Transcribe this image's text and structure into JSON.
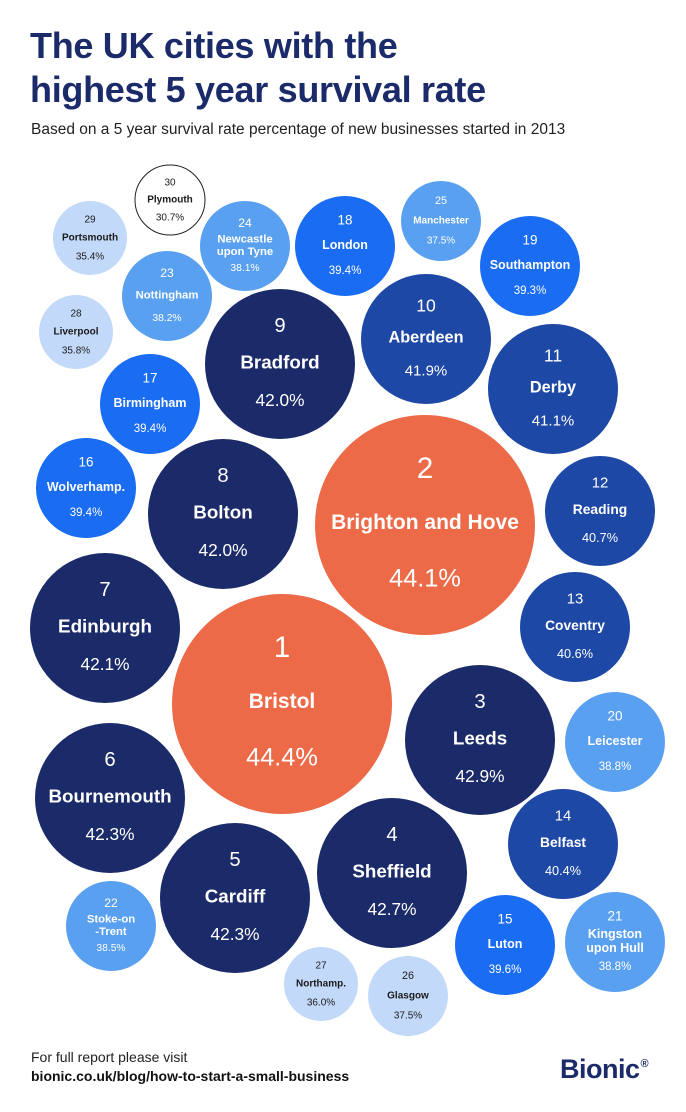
{
  "title_lines": [
    "The UK cities with the",
    "highest 5 year survival rate"
  ],
  "subtitle": "Based on a 5 year survival rate percentage of new businesses started in 2013",
  "footer": {
    "line1": "For full report please visit",
    "link": "bionic.co.uk/blog/how-to-start-a-small-business"
  },
  "logo": {
    "text": "Bionic",
    "mark": "®"
  },
  "colors": {
    "title": "#1b2a68",
    "rank_1_2": "#ec6a48",
    "rank_3_9": "#1b2a68",
    "rank_10_14": "#1e48a6",
    "rank_15_19": "#1a6cf2",
    "rank_20_25": "#5aa0f0",
    "rank_26_29": "#c3d9f9",
    "rank_30": "#ffffff"
  },
  "chart_data": {
    "type": "bubble",
    "title": "The UK cities with the highest 5 year survival rate",
    "subtitle": "Based on a 5 year survival rate percentage of new businesses started in 2013",
    "unit": "%",
    "cities": [
      {
        "rank": 1,
        "name": "Bristol",
        "rate": 44.4,
        "label": "44.4%"
      },
      {
        "rank": 2,
        "name": "Brighton and Hove",
        "rate": 44.1,
        "label": "44.1%"
      },
      {
        "rank": 3,
        "name": "Leeds",
        "rate": 42.9,
        "label": "42.9%"
      },
      {
        "rank": 4,
        "name": "Sheffield",
        "rate": 42.7,
        "label": "42.7%"
      },
      {
        "rank": 5,
        "name": "Cardiff",
        "rate": 42.3,
        "label": "42.3%"
      },
      {
        "rank": 6,
        "name": "Bournemouth",
        "rate": 42.3,
        "label": "42.3%"
      },
      {
        "rank": 7,
        "name": "Edinburgh",
        "rate": 42.1,
        "label": "42.1%"
      },
      {
        "rank": 8,
        "name": "Bolton",
        "rate": 42.0,
        "label": "42.0%"
      },
      {
        "rank": 9,
        "name": "Bradford",
        "rate": 42.0,
        "label": "42.0%"
      },
      {
        "rank": 10,
        "name": "Aberdeen",
        "rate": 41.9,
        "label": "41.9%"
      },
      {
        "rank": 11,
        "name": "Derby",
        "rate": 41.1,
        "label": "41.1%"
      },
      {
        "rank": 12,
        "name": "Reading",
        "rate": 40.7,
        "label": "40.7%"
      },
      {
        "rank": 13,
        "name": "Coventry",
        "rate": 40.6,
        "label": "40.6%"
      },
      {
        "rank": 14,
        "name": "Belfast",
        "rate": 40.4,
        "label": "40.4%"
      },
      {
        "rank": 15,
        "name": "Luton",
        "rate": 39.6,
        "label": "39.6%"
      },
      {
        "rank": 16,
        "name": "Wolverhamp.",
        "rate": 39.4,
        "label": "39.4%"
      },
      {
        "rank": 17,
        "name": "Birmingham",
        "rate": 39.4,
        "label": "39.4%"
      },
      {
        "rank": 18,
        "name": "London",
        "rate": 39.4,
        "label": "39.4%"
      },
      {
        "rank": 19,
        "name": "Southampton",
        "rate": 39.3,
        "label": "39.3%"
      },
      {
        "rank": 20,
        "name": "Leicester",
        "rate": 38.8,
        "label": "38.8%"
      },
      {
        "rank": 21,
        "name": "Kingston upon Hull",
        "rate": 38.8,
        "label": "38.8%"
      },
      {
        "rank": 22,
        "name": "Stoke-on -Trent",
        "rate": 38.5,
        "label": "38.5%"
      },
      {
        "rank": 23,
        "name": "Nottingham",
        "rate": 38.2,
        "label": "38.2%"
      },
      {
        "rank": 24,
        "name": "Newcastle upon Tyne",
        "rate": 38.1,
        "label": "38.1%"
      },
      {
        "rank": 25,
        "name": "Manchester",
        "rate": 37.5,
        "label": "37.5%"
      },
      {
        "rank": 26,
        "name": "Glasgow",
        "rate": 37.5,
        "label": "37.5%"
      },
      {
        "rank": 27,
        "name": "Northamp.",
        "rate": 36.0,
        "label": "36.0%"
      },
      {
        "rank": 28,
        "name": "Liverpool",
        "rate": 35.8,
        "label": "35.8%"
      },
      {
        "rank": 29,
        "name": "Portsmouth",
        "rate": 35.4,
        "label": "35.4%"
      },
      {
        "rank": 30,
        "name": "Plymouth",
        "rate": 30.7,
        "label": "30.7%"
      }
    ]
  }
}
